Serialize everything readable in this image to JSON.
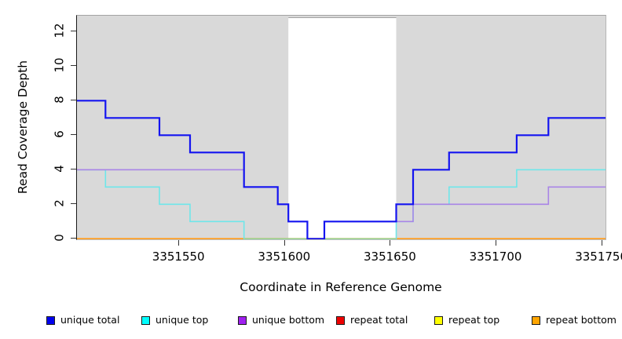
{
  "chart_data": {
    "type": "line",
    "subtype": "step",
    "title": "",
    "xlabel": "Coordinate in Reference Genome",
    "ylabel": "Read Coverage Depth",
    "xlim": [
      3351502,
      3351752
    ],
    "ylim": [
      0,
      13
    ],
    "x_ticks": [
      "3351550",
      "3351600",
      "3351650",
      "3351700",
      "3351750"
    ],
    "x_tick_values": [
      3351550,
      3351600,
      3351650,
      3351700,
      3351750
    ],
    "y_ticks": [
      "0",
      "2",
      "4",
      "6",
      "8",
      "10",
      "12"
    ],
    "y_tick_values": [
      0,
      2,
      4,
      6,
      8,
      10,
      12
    ],
    "grid": false,
    "legend_position": "bottom",
    "panel_bg": "#d9d9d9",
    "highlight_region": {
      "x1": 3351602,
      "x2": 3351653,
      "color": "#ffffff",
      "border_color": "#a3a3a3"
    },
    "y0_overlap_segment": {
      "x1": 3351581,
      "x2": 3351653,
      "color": "#90d8a0",
      "z": 5,
      "width": 1.6
    },
    "series": [
      {
        "name": "unique total",
        "color": "#1414f0",
        "legend_color": "#0000ee",
        "width": 2.2,
        "z": 7,
        "steps": [
          [
            3351502,
            8
          ],
          [
            3351515.5,
            7
          ],
          [
            3351541,
            6
          ],
          [
            3351555.5,
            5
          ],
          [
            3351581,
            3
          ],
          [
            3351597,
            2
          ],
          [
            3351602,
            1
          ],
          [
            3351611,
            0
          ],
          [
            3351619,
            1
          ],
          [
            3351653,
            2
          ],
          [
            3351661,
            4
          ],
          [
            3351678,
            5
          ],
          [
            3351710,
            6
          ],
          [
            3351725,
            7
          ]
        ],
        "end_x": 3351752
      },
      {
        "name": "unique top",
        "color": "#6fe6ea",
        "legend_color": "#00ffff",
        "width": 1.6,
        "z": 4,
        "steps": [
          [
            3351502,
            4
          ],
          [
            3351515.5,
            3
          ],
          [
            3351541,
            2
          ],
          [
            3351555.5,
            1
          ],
          [
            3351581,
            0
          ],
          [
            3351653,
            1
          ],
          [
            3351661,
            2
          ],
          [
            3351678,
            3
          ],
          [
            3351710,
            4
          ]
        ],
        "end_x": 3351752
      },
      {
        "name": "unique bottom",
        "color": "#a985e6",
        "legend_color": "#a020f0",
        "width": 1.6,
        "z": 6,
        "steps": [
          [
            3351502,
            4
          ],
          [
            3351581,
            3
          ],
          [
            3351597,
            2
          ],
          [
            3351602,
            1
          ],
          [
            3351611,
            0
          ],
          [
            3351619,
            1
          ],
          [
            3351661,
            2
          ],
          [
            3351725,
            3
          ]
        ],
        "end_x": 3351752
      },
      {
        "name": "repeat total",
        "color": "#dd0000",
        "legend_color": "#ee0000",
        "width": 1.5,
        "z": 1,
        "steps": [
          [
            3351502,
            0
          ]
        ],
        "end_x": 3351752
      },
      {
        "name": "repeat top",
        "color": "#f5f500",
        "legend_color": "#ffff00",
        "width": 1.5,
        "z": 2,
        "steps": [
          [
            3351502,
            0
          ]
        ],
        "end_x": 3351752
      },
      {
        "name": "repeat bottom",
        "color": "#ffa025",
        "legend_color": "#ffa500",
        "width": 2,
        "z": 3,
        "steps": [
          [
            3351502,
            0
          ]
        ],
        "end_x": 3351752
      }
    ]
  },
  "legend": {
    "items": [
      {
        "label": "unique total",
        "color": "#0000ee"
      },
      {
        "label": "unique top",
        "color": "#00ffff"
      },
      {
        "label": "unique bottom",
        "color": "#a020f0"
      },
      {
        "label": "repeat total",
        "color": "#ee0000"
      },
      {
        "label": "repeat top",
        "color": "#ffff00"
      },
      {
        "label": "repeat bottom",
        "color": "#ffa500"
      }
    ]
  }
}
